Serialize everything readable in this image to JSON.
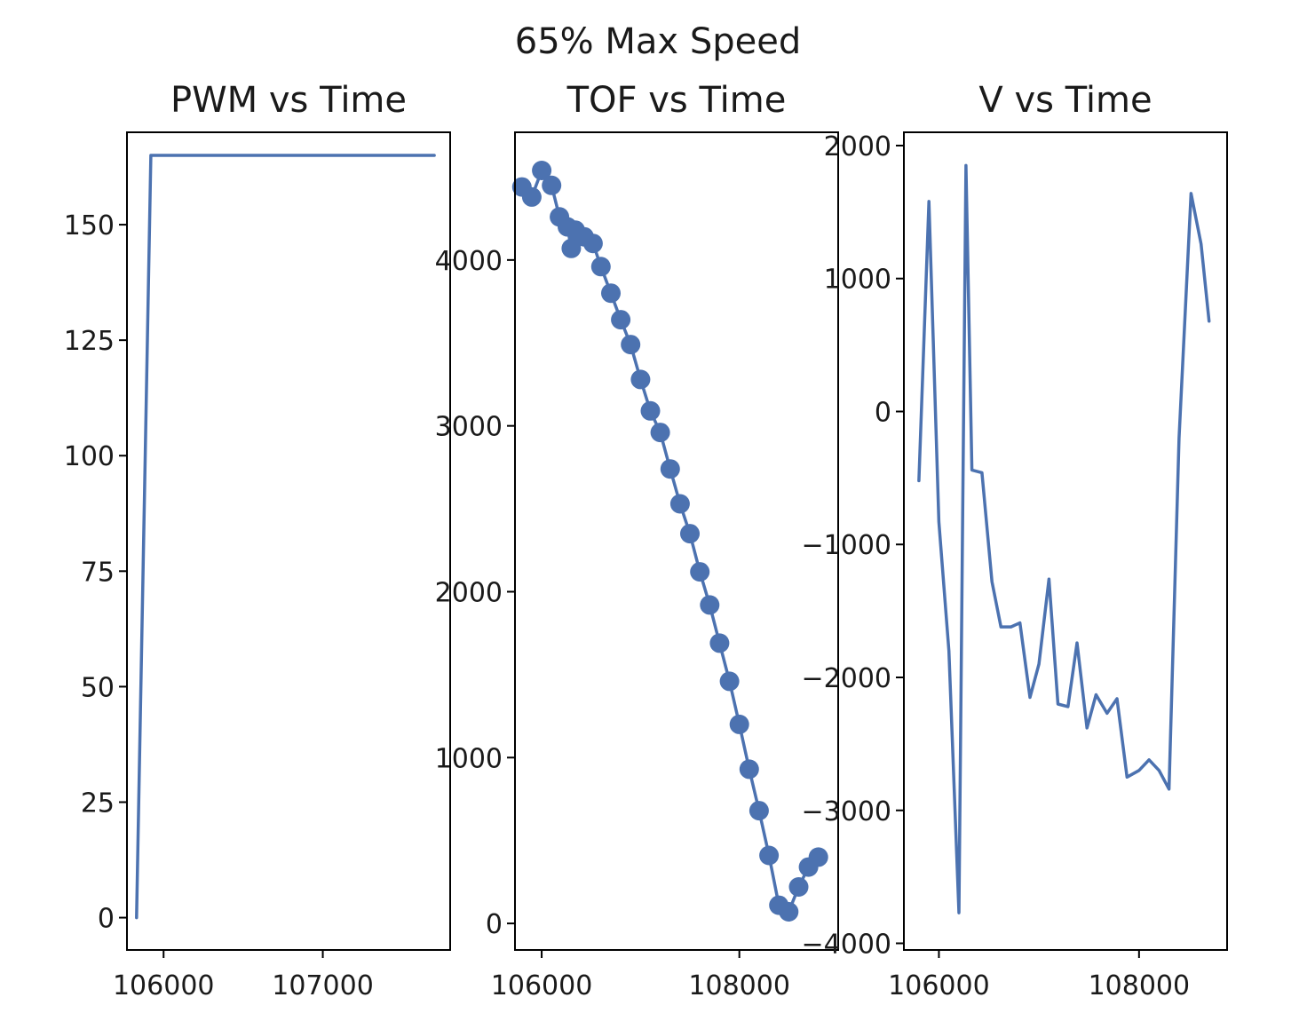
{
  "figure": {
    "title": "65% Max Speed"
  },
  "theme": {
    "series_color": "#4c72b0"
  },
  "chart_data": [
    {
      "type": "line",
      "title": "PWM vs Time",
      "xlabel": "",
      "ylabel": "",
      "xlim": [
        105770,
        107800
      ],
      "ylim": [
        -7,
        170
      ],
      "xticks": [
        106000,
        107000
      ],
      "yticks": [
        0,
        25,
        50,
        75,
        100,
        125,
        150
      ],
      "grid": false,
      "markers": false,
      "x": [
        105830,
        105920,
        107700
      ],
      "y": [
        0,
        165,
        165
      ]
    },
    {
      "type": "line",
      "title": "TOF vs Time",
      "xlabel": "",
      "ylabel": "",
      "xlim": [
        105730,
        109000
      ],
      "ylim": [
        -160,
        4770
      ],
      "xticks": [
        106000,
        108000
      ],
      "yticks": [
        0,
        1000,
        2000,
        3000,
        4000
      ],
      "grid": false,
      "markers": true,
      "x": [
        105800,
        105900,
        106000,
        106100,
        106180,
        106260,
        106300,
        106340,
        106430,
        106520,
        106600,
        106700,
        106800,
        106900,
        107000,
        107100,
        107200,
        107300,
        107400,
        107500,
        107600,
        107700,
        107800,
        107900,
        108000,
        108100,
        108200,
        108300,
        108400,
        108500,
        108600,
        108700,
        108800
      ],
      "y": [
        4440,
        4380,
        4540,
        4450,
        4260,
        4200,
        4070,
        4180,
        4140,
        4100,
        3960,
        3800,
        3640,
        3490,
        3280,
        3090,
        2960,
        2740,
        2530,
        2350,
        2120,
        1920,
        1690,
        1460,
        1200,
        930,
        680,
        410,
        110,
        70,
        220,
        340,
        400
      ]
    },
    {
      "type": "line",
      "title": "V vs Time",
      "xlabel": "",
      "ylabel": "",
      "xlim": [
        105650,
        108880
      ],
      "ylim": [
        -4050,
        2100
      ],
      "xticks": [
        106000,
        108000
      ],
      "yticks": [
        -4000,
        -3000,
        -2000,
        -1000,
        0,
        1000,
        2000
      ],
      "grid": false,
      "markers": false,
      "x": [
        105800,
        105900,
        106000,
        106100,
        106200,
        106270,
        106330,
        106430,
        106530,
        106620,
        106720,
        106810,
        106910,
        107000,
        107100,
        107190,
        107290,
        107380,
        107480,
        107570,
        107680,
        107780,
        107880,
        108000,
        108100,
        108200,
        108300,
        108400,
        108520,
        108620,
        108700
      ],
      "y": [
        -520,
        1580,
        -830,
        -1800,
        -3770,
        1850,
        -440,
        -460,
        -1280,
        -1620,
        -1620,
        -1590,
        -2150,
        -1900,
        -1260,
        -2200,
        -2220,
        -1740,
        -2380,
        -2130,
        -2270,
        -2160,
        -2750,
        -2700,
        -2620,
        -2700,
        -2840,
        -200,
        1640,
        1260,
        680
      ]
    }
  ]
}
